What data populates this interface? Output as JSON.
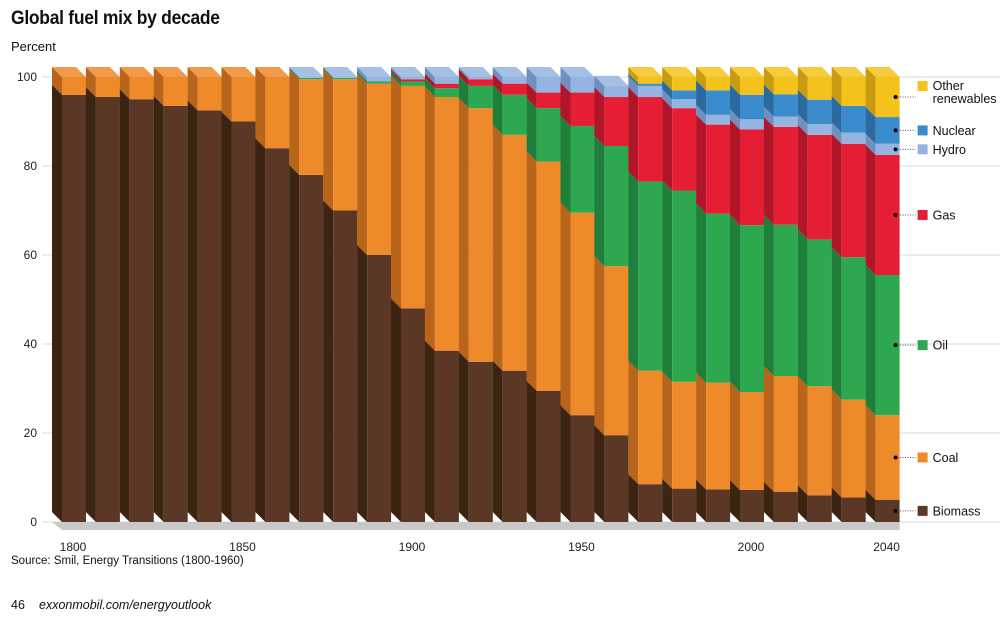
{
  "header": {
    "title": "Global fuel mix by decade",
    "unit": "Percent"
  },
  "footer": {
    "source": "Source: Smil, Energy Transitions (1800-1960)",
    "page_number": "46",
    "site": "exxonmobil.com/energyoutlook"
  },
  "chart_data": {
    "type": "bar",
    "stacked": true,
    "title": "Global fuel mix by decade",
    "ylabel": "Percent",
    "xlabel": "",
    "ylim": [
      0,
      100
    ],
    "yticks": [
      0,
      20,
      40,
      60,
      80,
      100
    ],
    "xtick_labels": [
      "1800",
      "1850",
      "1900",
      "1950",
      "2000",
      "2040"
    ],
    "grid": true,
    "legend_position": "right",
    "categories": [
      "1800",
      "1810",
      "1820",
      "1830",
      "1840",
      "1850",
      "1860",
      "1870",
      "1880",
      "1890",
      "1900",
      "1910",
      "1920",
      "1930",
      "1940",
      "1950",
      "1960",
      "1970",
      "1980",
      "1990",
      "2000",
      "2010",
      "2020",
      "2030",
      "2040"
    ],
    "series": [
      {
        "name": "Biomass",
        "color": "#5a3825",
        "side": "#3d2312",
        "values": [
          96,
          95.5,
          95,
          93.5,
          92.5,
          90,
          84,
          78,
          70,
          60,
          48,
          38.5,
          36,
          34,
          29.5,
          24,
          19.5,
          8.5,
          7.5,
          7.3,
          7.2,
          6.8,
          6,
          5.5,
          5
        ]
      },
      {
        "name": "Coal",
        "color": "#ef8a2a",
        "side": "#b8641a",
        "values": [
          4,
          4.5,
          5,
          6.5,
          7.5,
          10,
          16,
          21.5,
          29.5,
          38.5,
          50,
          57,
          57,
          53,
          51.5,
          45.5,
          38,
          25.5,
          24,
          24,
          22,
          26,
          24.5,
          22,
          19
        ]
      },
      {
        "name": "Oil",
        "color": "#2ea84f",
        "side": "#1f7e39",
        "values": [
          0,
          0,
          0,
          0,
          0,
          0,
          0,
          0.3,
          0.3,
          0.5,
          1,
          2,
          5,
          9,
          12,
          19.5,
          27,
          42.5,
          43,
          38,
          37.5,
          34,
          33,
          32,
          31.5
        ]
      },
      {
        "name": "Gas",
        "color": "#e61e34",
        "side": "#b0152a",
        "values": [
          0,
          0,
          0,
          0,
          0,
          0,
          0,
          0,
          0,
          0,
          0.5,
          1,
          1.5,
          2.5,
          3.5,
          7.5,
          11,
          19,
          18.5,
          20,
          21.5,
          22,
          23.5,
          25.5,
          27
        ]
      },
      {
        "name": "Hydro",
        "color": "#95b4e0",
        "side": "#6f8fbe",
        "values": [
          0,
          0,
          0,
          0,
          0,
          0,
          0,
          0.2,
          0.2,
          1,
          0.5,
          1.5,
          0.5,
          1.5,
          3.5,
          3.5,
          2.5,
          2.5,
          2,
          2.2,
          2.3,
          2.3,
          2.4,
          2.5,
          2.5
        ]
      },
      {
        "name": "Nuclear",
        "color": "#3a8ccc",
        "side": "#2a6a9e",
        "values": [
          0,
          0,
          0,
          0,
          0,
          0,
          0,
          0,
          0,
          0,
          0,
          0,
          0,
          0,
          0,
          0,
          0,
          0.5,
          2,
          5.5,
          5.5,
          5,
          5.5,
          6,
          6
        ]
      },
      {
        "name": "Other renewables",
        "color": "#f4c21a",
        "side": "#c89b10",
        "values": [
          0,
          0,
          0,
          0,
          0,
          0,
          0,
          0,
          0,
          0,
          0,
          0,
          0,
          0,
          0,
          0,
          0,
          1.5,
          3,
          3,
          4,
          3.9,
          5.1,
          6.5,
          9
        ]
      }
    ]
  },
  "legend": {
    "items": [
      {
        "label_lines": [
          "Other",
          "renewables"
        ],
        "series": "Other renewables",
        "color": "#f4c21a"
      },
      {
        "label_lines": [
          "Nuclear"
        ],
        "series": "Nuclear",
        "color": "#3a8ccc"
      },
      {
        "label_lines": [
          "Hydro"
        ],
        "series": "Hydro",
        "color": "#95b4e0"
      },
      {
        "label_lines": [
          "Gas"
        ],
        "series": "Gas",
        "color": "#e61e34"
      },
      {
        "label_lines": [
          "Oil"
        ],
        "series": "Oil",
        "color": "#2ea84f"
      },
      {
        "label_lines": [
          "Coal"
        ],
        "series": "Coal",
        "color": "#ef8a2a"
      },
      {
        "label_lines": [
          "Biomass"
        ],
        "series": "Biomass",
        "color": "#5a3825"
      }
    ]
  }
}
